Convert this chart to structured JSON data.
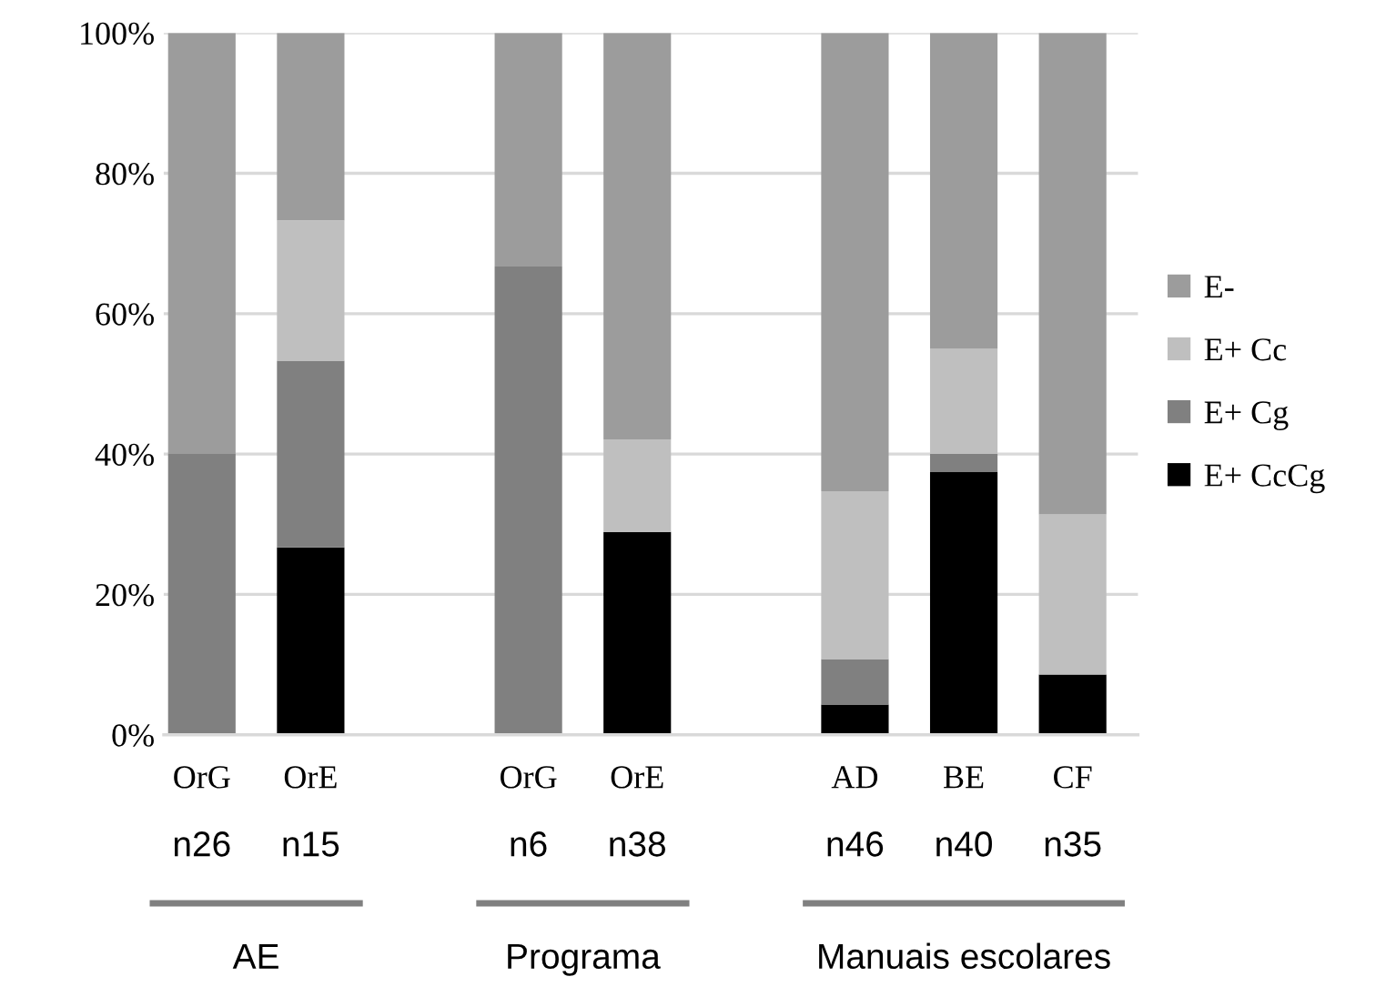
{
  "chart_data": {
    "type": "bar",
    "stacked": true,
    "categories": [
      "OrG",
      "OrE",
      null,
      "OrG",
      "OrE",
      null,
      "AD",
      "BE",
      "CF"
    ],
    "series": [
      {
        "name": "E+ CcCg",
        "color": "#000000",
        "values": [
          0,
          26.7,
          null,
          0,
          28.9,
          null,
          4.3,
          37.5,
          8.6
        ]
      },
      {
        "name": "E+ Cg",
        "color": "#808080",
        "values": [
          40,
          26.6,
          null,
          66.7,
          0,
          null,
          6.5,
          2.5,
          0
        ]
      },
      {
        "name": "E+ Cc",
        "color": "#bfbfbf",
        "values": [
          0,
          20,
          null,
          0,
          13.2,
          null,
          23.9,
          15,
          22.8
        ]
      },
      {
        "name": "E-",
        "color": "#9c9c9c",
        "values": [
          60,
          26.7,
          null,
          33.3,
          57.9,
          null,
          65.3,
          45,
          68.6
        ]
      }
    ],
    "ylim": [
      0,
      100
    ],
    "yticks": [
      {
        "value": 0,
        "label": "0%"
      },
      {
        "value": 20,
        "label": "20%"
      },
      {
        "value": 40,
        "label": "40%"
      },
      {
        "value": 60,
        "label": "60%"
      },
      {
        "value": 80,
        "label": "80%"
      },
      {
        "value": 100,
        "label": "100%"
      }
    ],
    "grid": "y",
    "legend": "right",
    "annotations": [
      "n26",
      "n15",
      "n6",
      "n38",
      "n46",
      "n40",
      "n35",
      "AE",
      "Programa",
      "Manuais escolares"
    ]
  }
}
